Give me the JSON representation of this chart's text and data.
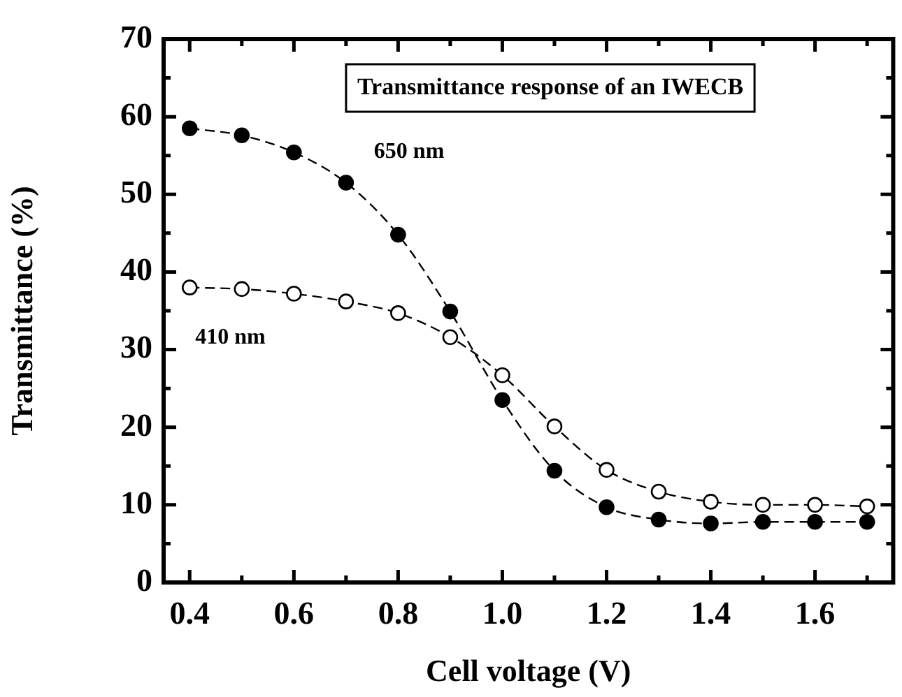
{
  "chart_data": {
    "type": "line",
    "title": "Transmittance response of an IWECB",
    "xlabel": "Cell voltage (V)",
    "ylabel": "Transmittance (%)",
    "x": [
      0.4,
      0.5,
      0.6,
      0.7,
      0.8,
      0.9,
      1.0,
      1.1,
      1.2,
      1.3,
      1.4,
      1.5,
      1.6,
      1.7
    ],
    "series": [
      {
        "name": "650 nm",
        "color": "#000000",
        "values": [
          58.5,
          57.6,
          55.4,
          51.5,
          44.8,
          34.9,
          23.5,
          14.4,
          9.7,
          8.1,
          7.6,
          7.8,
          7.8,
          7.8
        ]
      },
      {
        "name": "410 nm",
        "color": "#000000",
        "values": [
          38.0,
          37.8,
          37.2,
          36.2,
          34.7,
          31.6,
          26.7,
          20.1,
          14.5,
          11.7,
          10.4,
          10.0,
          10.0,
          9.8
        ]
      }
    ],
    "xlim": [
      0.35,
      1.75
    ],
    "ylim": [
      0,
      70
    ],
    "xticks": [
      0.4,
      {
        "value": 0.5,
        "label": null
      },
      0.6,
      {
        "value": 0.7,
        "label": null
      },
      0.8,
      {
        "value": 0.9,
        "label": null
      },
      {
        "value": 1.0,
        "label": "1.0"
      },
      {
        "value": 1.1,
        "label": null
      },
      1.2,
      {
        "value": 1.3,
        "label": null
      },
      1.4,
      {
        "value": 1.5,
        "label": null
      },
      1.6,
      {
        "value": 1.7,
        "label": null
      }
    ],
    "yticks": [
      0,
      {
        "value": 5,
        "label": null
      },
      10,
      {
        "value": 15,
        "label": null
      },
      20,
      {
        "value": 25,
        "label": null
      },
      30,
      {
        "value": 35,
        "label": null
      },
      40,
      {
        "value": 45,
        "label": null
      },
      50,
      {
        "value": 55,
        "label": null
      },
      60,
      {
        "value": 65,
        "label": null
      },
      70
    ],
    "marker": "circle",
    "line_style": "dashed",
    "legend": false
  }
}
